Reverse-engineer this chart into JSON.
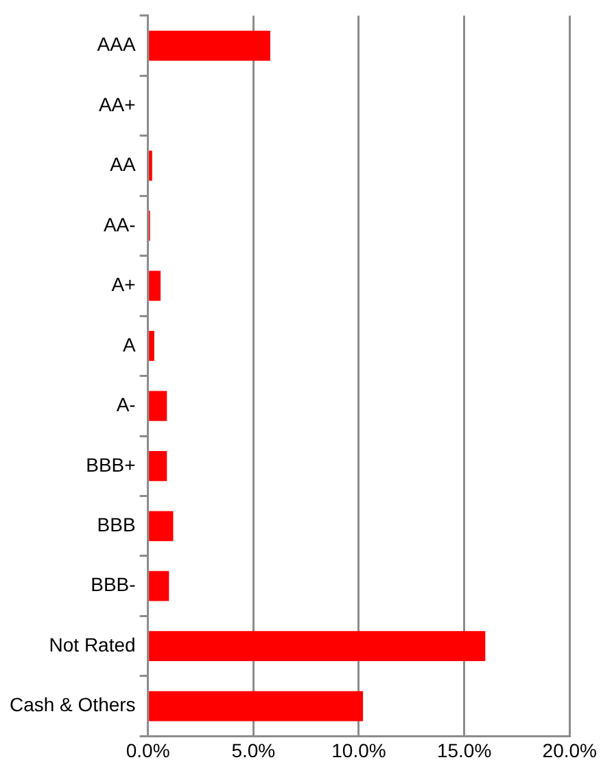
{
  "chart_data": {
    "type": "bar",
    "orientation": "horizontal",
    "categories": [
      "AAA",
      "AA+",
      "AA",
      "AA-",
      "A+",
      "A",
      "A-",
      "BBB+",
      "BBB",
      "BBB-",
      "Not Rated",
      "Cash & Others"
    ],
    "values": [
      5.8,
      0,
      0.2,
      0.1,
      0.6,
      0.3,
      0.9,
      0.9,
      1.2,
      1.0,
      16.0,
      10.2
    ],
    "color": "#ff0000",
    "xlim": [
      0,
      20
    ],
    "xticks": [
      {
        "value": 0,
        "label": "0.0%"
      },
      {
        "value": 5,
        "label": "5.0%"
      },
      {
        "value": 10,
        "label": "10.0%"
      },
      {
        "value": 15,
        "label": "15.0%"
      },
      {
        "value": 20,
        "label": "20.0%"
      }
    ],
    "grid": "x",
    "legend": false
  }
}
